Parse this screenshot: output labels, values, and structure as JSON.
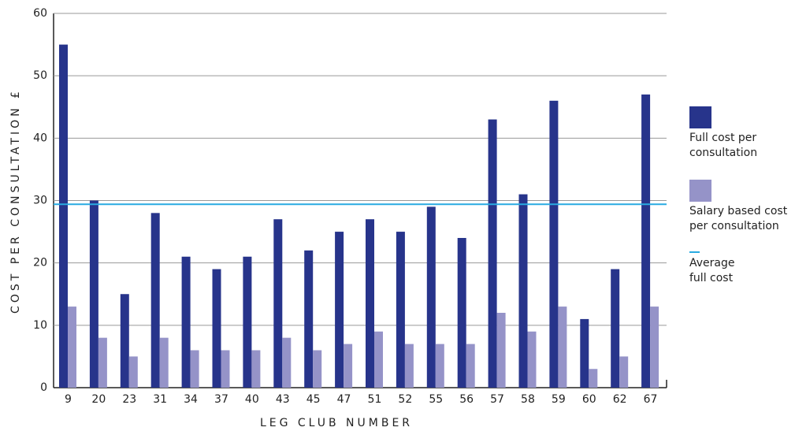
{
  "chart_data": {
    "type": "bar",
    "y_label": "COST PER CONSULTATION £",
    "x_label": "LEG CLUB NUMBER",
    "categories": [
      "9",
      "20",
      "23",
      "31",
      "34",
      "37",
      "40",
      "43",
      "45",
      "47",
      "51",
      "52",
      "55",
      "56",
      "57",
      "58",
      "59",
      "60",
      "62",
      "67"
    ],
    "series": [
      {
        "name": "Full cost per consultation",
        "color": "#27348b",
        "values": [
          55,
          30,
          15,
          28,
          21,
          19,
          21,
          27,
          22,
          25,
          27,
          25,
          29,
          24,
          43,
          31,
          46,
          11,
          19,
          47
        ]
      },
      {
        "name": "Salary based cost per consultation",
        "color": "#9593c8",
        "values": [
          13,
          8,
          5,
          8,
          6,
          6,
          6,
          8,
          6,
          7,
          9,
          7,
          7,
          7,
          12,
          9,
          13,
          3,
          5,
          13
        ]
      }
    ],
    "reference_line": {
      "name": "Average full cost",
      "value": 29.4,
      "color": "#29abe2"
    },
    "ylim": [
      0,
      60
    ],
    "yticks": [
      0,
      10,
      20,
      30,
      40,
      50,
      60
    ],
    "grid": true,
    "legend": "right"
  }
}
